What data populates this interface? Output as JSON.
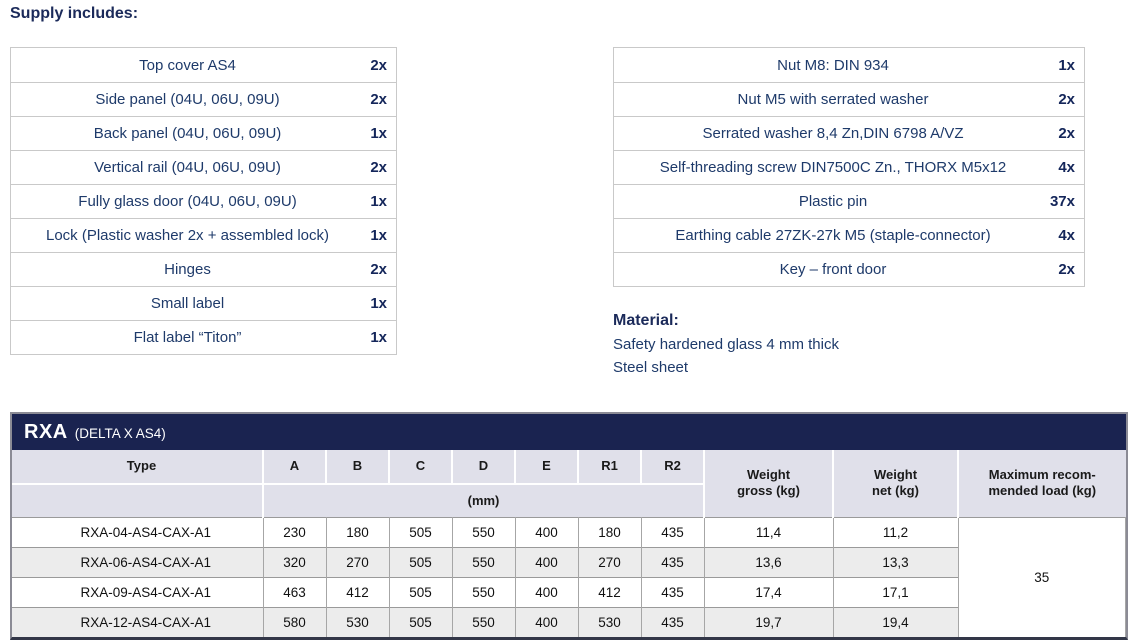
{
  "page": {
    "heading": "Supply includes:"
  },
  "supply_left": {
    "rows": [
      {
        "item": "Top cover AS4",
        "qty": "2x"
      },
      {
        "item": "Side panel (04U, 06U, 09U)",
        "qty": "2x"
      },
      {
        "item": "Back panel (04U, 06U, 09U)",
        "qty": "1x"
      },
      {
        "item": "Vertical rail (04U, 06U, 09U)",
        "qty": "2x"
      },
      {
        "item": "Fully glass door (04U, 06U, 09U)",
        "qty": "1x"
      },
      {
        "item": "Lock (Plastic washer 2x + assembled lock)",
        "qty": "1x"
      },
      {
        "item": "Hinges",
        "qty": "2x"
      },
      {
        "item": "Small label",
        "qty": "1x"
      },
      {
        "item": "Flat label “Titon”",
        "qty": "1x"
      }
    ]
  },
  "supply_right": {
    "rows": [
      {
        "item": "Nut M8: DIN 934",
        "qty": "1x"
      },
      {
        "item": "Nut M5 with serrated washer",
        "qty": "2x"
      },
      {
        "item": "Serrated washer 8,4 Zn,DIN 6798 A/VZ",
        "qty": "2x"
      },
      {
        "item": "Self-threading screw DIN7500C Zn., THORX M5x12",
        "qty": "4x"
      },
      {
        "item": "Plastic pin",
        "qty": "37x"
      },
      {
        "item": "Earthing cable 27ZK-27k M5 (staple-connector)",
        "qty": "4x"
      },
      {
        "item": "Key – front door",
        "qty": "2x"
      }
    ]
  },
  "material": {
    "heading": "Material:",
    "lines": [
      "Safety hardened glass 4 mm thick",
      "Steel sheet"
    ]
  },
  "rxa_table": {
    "title": "RXA",
    "subtitle": "(DELTA X AS4)",
    "col_type": "Type",
    "dim_columns": [
      "A",
      "B",
      "C",
      "D",
      "E",
      "R1",
      "R2"
    ],
    "unit_label": "(mm)",
    "col_weight_gross": {
      "line1": "Weight",
      "line2": "gross (kg)"
    },
    "col_weight_net": {
      "line1": "Weight",
      "line2": "net (kg)"
    },
    "col_max_load": {
      "line1": "Maximum recom-",
      "line2": "mended load (kg)"
    },
    "rows": [
      {
        "type": "RXA-04-AS4-CAX-A1",
        "mm": [
          "230",
          "180",
          "505",
          "550",
          "400",
          "180",
          "435"
        ],
        "weight_gross": "11,4",
        "weight_net": "11,2"
      },
      {
        "type": "RXA-06-AS4-CAX-A1",
        "mm": [
          "320",
          "270",
          "505",
          "550",
          "400",
          "270",
          "435"
        ],
        "weight_gross": "13,6",
        "weight_net": "13,3"
      },
      {
        "type": "RXA-09-AS4-CAX-A1",
        "mm": [
          "463",
          "412",
          "505",
          "550",
          "400",
          "412",
          "435"
        ],
        "weight_gross": "17,4",
        "weight_net": "17,1"
      },
      {
        "type": "RXA-12-AS4-CAX-A1",
        "mm": [
          "580",
          "530",
          "505",
          "550",
          "400",
          "530",
          "435"
        ],
        "weight_gross": "19,7",
        "weight_net": "19,4"
      }
    ],
    "max_load": "35"
  },
  "colors": {
    "navy_bar": "#1a2350",
    "heading_text": "#1b2a5a",
    "item_text": "#1e3a6a",
    "header_cell_bg": "#e0e0ea",
    "stripe_row_bg": "#ececec"
  }
}
